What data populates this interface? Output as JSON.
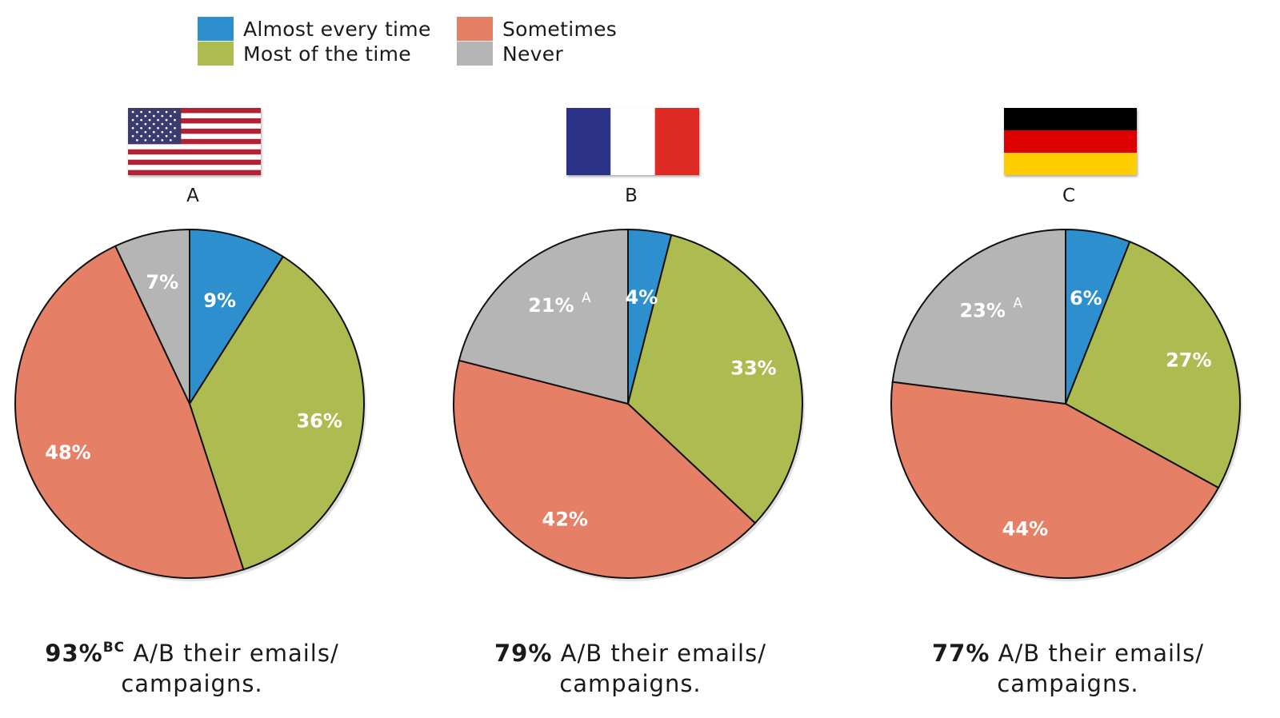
{
  "legend": [
    {
      "label": "Almost every time",
      "color": "#2e8fcf"
    },
    {
      "label": "Most of the time",
      "color": "#aebb50"
    },
    {
      "label": "Sometimes",
      "color": "#e58067"
    },
    {
      "label": "Never",
      "color": "#b5b5b5"
    }
  ],
  "panels": [
    {
      "letter": "A",
      "flag": "us-flag",
      "caption_pct": "93%",
      "caption_sup": "BC",
      "caption_text": " A/B their emails/",
      "caption_text2": "campaigns."
    },
    {
      "letter": "B",
      "flag": "france-flag",
      "caption_pct": "79%",
      "caption_sup": "",
      "caption_text": " A/B their emails/",
      "caption_text2": "campaigns."
    },
    {
      "letter": "C",
      "flag": "germany-flag",
      "caption_pct": "77%",
      "caption_sup": "",
      "caption_text": " A/B their emails/",
      "caption_text2": "campaigns."
    }
  ],
  "chart_data": [
    {
      "type": "pie",
      "title": "A",
      "categories": [
        "Almost every time",
        "Most of the time",
        "Sometimes",
        "Never"
      ],
      "values": [
        9,
        36,
        48,
        7
      ],
      "labels": [
        "9%",
        "36%",
        "48%",
        "7%"
      ],
      "superscripts": [
        "",
        "",
        "",
        ""
      ],
      "colors": [
        "#2e8fcf",
        "#aebb50",
        "#e58067",
        "#b5b5b5"
      ],
      "legend": "top"
    },
    {
      "type": "pie",
      "title": "B",
      "categories": [
        "Almost every time",
        "Most of the time",
        "Sometimes",
        "Never"
      ],
      "values": [
        4,
        33,
        42,
        21
      ],
      "labels": [
        "4%",
        "33%",
        "42%",
        "21%"
      ],
      "superscripts": [
        "",
        "",
        "",
        "A"
      ],
      "colors": [
        "#2e8fcf",
        "#aebb50",
        "#e58067",
        "#b5b5b5"
      ],
      "legend": "top"
    },
    {
      "type": "pie",
      "title": "C",
      "categories": [
        "Almost every time",
        "Most of the time",
        "Sometimes",
        "Never"
      ],
      "values": [
        6,
        27,
        44,
        23
      ],
      "labels": [
        "6%",
        "27%",
        "44%",
        "23%"
      ],
      "superscripts": [
        "",
        "",
        "",
        "A"
      ],
      "colors": [
        "#2e8fcf",
        "#aebb50",
        "#e58067",
        "#b5b5b5"
      ],
      "legend": "top"
    }
  ]
}
